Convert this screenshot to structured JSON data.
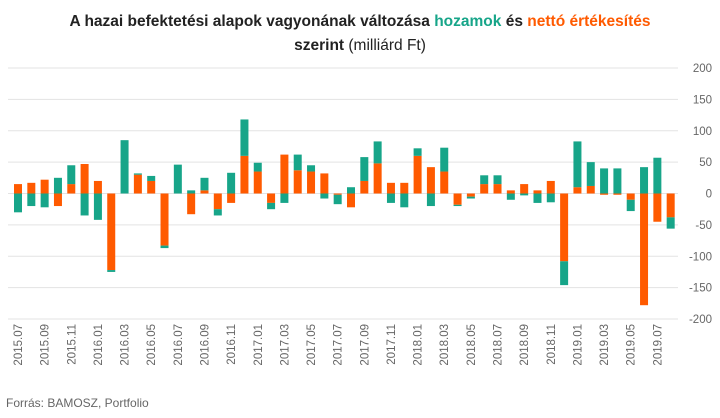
{
  "title": {
    "part1": "A hazai befektetési alapok vagyonának változása",
    "part2": "hozamok",
    "part3": "és",
    "part4": "nettó értékesítés",
    "part5": "szerint",
    "part6": "(milliárd  Ft)"
  },
  "source": "Forrás: BAMOSZ,  Portfolio",
  "colors": {
    "hozam": "#17a589",
    "netto": "#ff5a00",
    "grid": "#e3e3e3"
  },
  "chart_data": {
    "type": "bar",
    "stacked": true,
    "ylim": [
      -200,
      200
    ],
    "yticks": [
      -200,
      -150,
      -100,
      -50,
      0,
      50,
      100,
      150,
      200
    ],
    "grid": true,
    "legend": "none",
    "categories": [
      "2015.07",
      "2015.08",
      "2015.09",
      "2015.10",
      "2015.11",
      "2015.12",
      "2016.01",
      "2016.02",
      "2016.03",
      "2016.04",
      "2016.05",
      "2016.06",
      "2016.07",
      "2016.08",
      "2016.09",
      "2016.10",
      "2016.11",
      "2016.12",
      "2017.01",
      "2017.02",
      "2017.03",
      "2017.04",
      "2017.05",
      "2017.06",
      "2017.07",
      "2017.08",
      "2017.09",
      "2017.10",
      "2017.11",
      "2017.12",
      "2018.01",
      "2018.02",
      "2018.03",
      "2018.04",
      "2018.05",
      "2018.06",
      "2018.07",
      "2018.08",
      "2018.09",
      "2018.10",
      "2018.11",
      "2018.12",
      "2019.01",
      "2019.02",
      "2019.03",
      "2019.04",
      "2019.05",
      "2019.06",
      "2019.07",
      "2019.08"
    ],
    "xtick_labels": [
      "2015.07",
      "2015.09",
      "2015.11",
      "2016.01",
      "2016.03",
      "2016.05",
      "2016.07",
      "2016.09",
      "2016.11",
      "2017.01",
      "2017.03",
      "2017.05",
      "2017.07",
      "2017.09",
      "2017.11",
      "2018.01",
      "2018.03",
      "2018.05",
      "2018.07",
      "2018.09",
      "2018.11",
      "2019.01",
      "2019.03",
      "2019.05",
      "2019.07"
    ],
    "series": [
      {
        "name": "hozamok",
        "values": [
          -30,
          -20,
          -22,
          25,
          30,
          -35,
          -42,
          -3,
          85,
          2,
          8,
          -4,
          46,
          5,
          20,
          -10,
          33,
          58,
          14,
          -10,
          -15,
          25,
          10,
          -8,
          -15,
          10,
          38,
          35,
          -15,
          -22,
          12,
          -20,
          38,
          -2,
          -3,
          14,
          14,
          -10,
          -3,
          -15,
          -14,
          -38,
          73,
          38,
          40,
          40,
          -18,
          42,
          57,
          -18
        ]
      },
      {
        "name": "nettó értékesítés",
        "values": [
          15,
          17,
          22,
          -20,
          15,
          47,
          20,
          -122,
          0,
          30,
          20,
          -83,
          0,
          -33,
          5,
          -25,
          -15,
          60,
          35,
          -15,
          62,
          37,
          35,
          32,
          -2,
          -22,
          20,
          48,
          17,
          17,
          60,
          42,
          35,
          -18,
          -5,
          15,
          15,
          5,
          15,
          5,
          20,
          -108,
          10,
          12,
          -2,
          -2,
          -10,
          -178,
          -45,
          -38
        ]
      }
    ]
  }
}
